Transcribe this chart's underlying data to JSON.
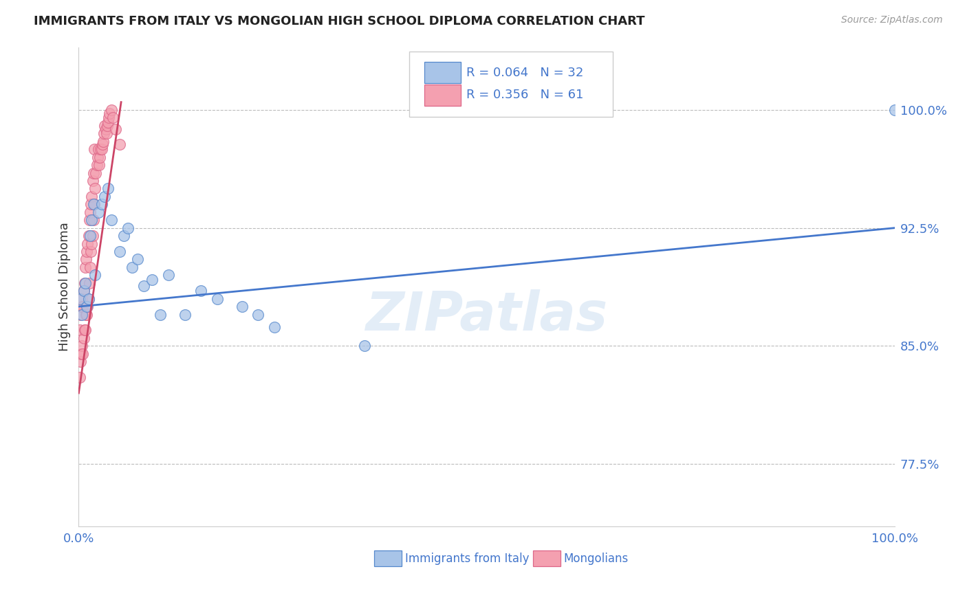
{
  "title": "IMMIGRANTS FROM ITALY VS MONGOLIAN HIGH SCHOOL DIPLOMA CORRELATION CHART",
  "source": "Source: ZipAtlas.com",
  "ylabel": "High School Diploma",
  "yticks": [
    0.775,
    0.85,
    0.925,
    1.0
  ],
  "ytick_labels": [
    "77.5%",
    "85.0%",
    "92.5%",
    "100.0%"
  ],
  "xlim": [
    0.0,
    1.0
  ],
  "ylim": [
    0.735,
    1.04
  ],
  "legend_blue_r": "0.064",
  "legend_blue_n": "32",
  "legend_pink_r": "0.356",
  "legend_pink_n": "61",
  "blue_fill": "#A8C4E8",
  "pink_fill": "#F4A0B0",
  "blue_edge": "#5588CC",
  "pink_edge": "#DD6688",
  "blue_line": "#4477CC",
  "pink_line": "#CC4466",
  "watermark": "ZIPatlas",
  "blue_scatter_x": [
    0.001,
    0.004,
    0.006,
    0.008,
    0.01,
    0.012,
    0.014,
    0.016,
    0.018,
    0.02,
    0.024,
    0.028,
    0.032,
    0.036,
    0.04,
    0.05,
    0.055,
    0.06,
    0.065,
    0.072,
    0.08,
    0.09,
    0.1,
    0.11,
    0.13,
    0.15,
    0.17,
    0.2,
    0.22,
    0.24,
    0.35,
    1.0
  ],
  "blue_scatter_y": [
    0.88,
    0.87,
    0.885,
    0.89,
    0.875,
    0.88,
    0.92,
    0.93,
    0.94,
    0.895,
    0.935,
    0.94,
    0.945,
    0.95,
    0.93,
    0.91,
    0.92,
    0.925,
    0.9,
    0.905,
    0.888,
    0.892,
    0.87,
    0.895,
    0.87,
    0.885,
    0.88,
    0.875,
    0.87,
    0.862,
    0.85,
    1.0
  ],
  "pink_scatter_x": [
    0.001,
    0.001,
    0.002,
    0.002,
    0.003,
    0.003,
    0.004,
    0.004,
    0.005,
    0.005,
    0.006,
    0.006,
    0.007,
    0.007,
    0.008,
    0.008,
    0.009,
    0.009,
    0.01,
    0.01,
    0.011,
    0.011,
    0.012,
    0.012,
    0.013,
    0.013,
    0.014,
    0.014,
    0.015,
    0.015,
    0.016,
    0.016,
    0.017,
    0.017,
    0.018,
    0.018,
    0.019,
    0.019,
    0.02,
    0.021,
    0.022,
    0.023,
    0.024,
    0.025,
    0.026,
    0.027,
    0.028,
    0.029,
    0.03,
    0.031,
    0.032,
    0.033,
    0.034,
    0.035,
    0.036,
    0.037,
    0.038,
    0.04,
    0.042,
    0.045,
    0.05
  ],
  "pink_scatter_y": [
    0.83,
    0.86,
    0.84,
    0.87,
    0.845,
    0.875,
    0.85,
    0.88,
    0.845,
    0.875,
    0.855,
    0.885,
    0.86,
    0.89,
    0.86,
    0.9,
    0.87,
    0.905,
    0.87,
    0.91,
    0.875,
    0.915,
    0.88,
    0.92,
    0.89,
    0.93,
    0.9,
    0.935,
    0.91,
    0.94,
    0.915,
    0.945,
    0.92,
    0.955,
    0.93,
    0.96,
    0.94,
    0.975,
    0.95,
    0.96,
    0.965,
    0.97,
    0.975,
    0.965,
    0.97,
    0.975,
    0.975,
    0.978,
    0.98,
    0.985,
    0.99,
    0.988,
    0.985,
    0.99,
    0.992,
    0.995,
    0.998,
    1.0,
    0.995,
    0.988,
    0.978
  ],
  "blue_line_x": [
    0.0,
    1.0
  ],
  "blue_line_y": [
    0.875,
    0.925
  ],
  "pink_line_x": [
    0.0,
    0.052
  ],
  "pink_line_y": [
    0.82,
    1.005
  ]
}
